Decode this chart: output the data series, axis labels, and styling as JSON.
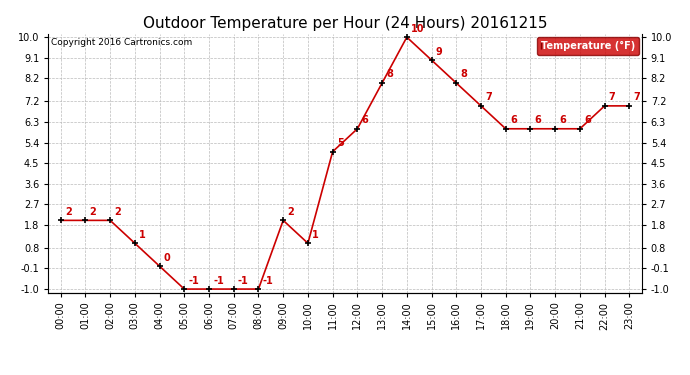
{
  "title": "Outdoor Temperature per Hour (24 Hours) 20161215",
  "copyright": "Copyright 2016 Cartronics.com",
  "legend_label": "Temperature (°F)",
  "hours": [
    "00:00",
    "01:00",
    "02:00",
    "03:00",
    "04:00",
    "05:00",
    "06:00",
    "07:00",
    "08:00",
    "09:00",
    "10:00",
    "11:00",
    "12:00",
    "13:00",
    "14:00",
    "15:00",
    "16:00",
    "17:00",
    "18:00",
    "19:00",
    "20:00",
    "21:00",
    "22:00",
    "23:00"
  ],
  "temperatures": [
    2,
    2,
    2,
    1,
    0,
    -1,
    -1,
    -1,
    -1,
    2,
    1,
    5,
    6,
    8,
    10,
    9,
    8,
    7,
    6,
    6,
    6,
    6,
    7,
    7
  ],
  "line_color": "#cc0000",
  "marker_color": "#000000",
  "annotation_color": "#cc0000",
  "background_color": "#ffffff",
  "grid_color": "#bbbbbb",
  "ylim": [
    -1.0,
    10.0
  ],
  "yticks": [
    -1.0,
    -0.1,
    0.8,
    1.8,
    2.7,
    3.6,
    4.5,
    5.4,
    6.3,
    7.2,
    8.2,
    9.1,
    10.0
  ],
  "ytick_labels": [
    "-1.0",
    "-0.1",
    "0.8",
    "1.8",
    "2.7",
    "3.6",
    "4.5",
    "5.4",
    "6.3",
    "7.2",
    "8.2",
    "9.1",
    "10.0"
  ],
  "title_fontsize": 11,
  "annotation_fontsize": 7,
  "tick_fontsize": 7,
  "legend_bg": "#cc0000",
  "legend_fg": "#ffffff",
  "legend_fontsize": 7
}
